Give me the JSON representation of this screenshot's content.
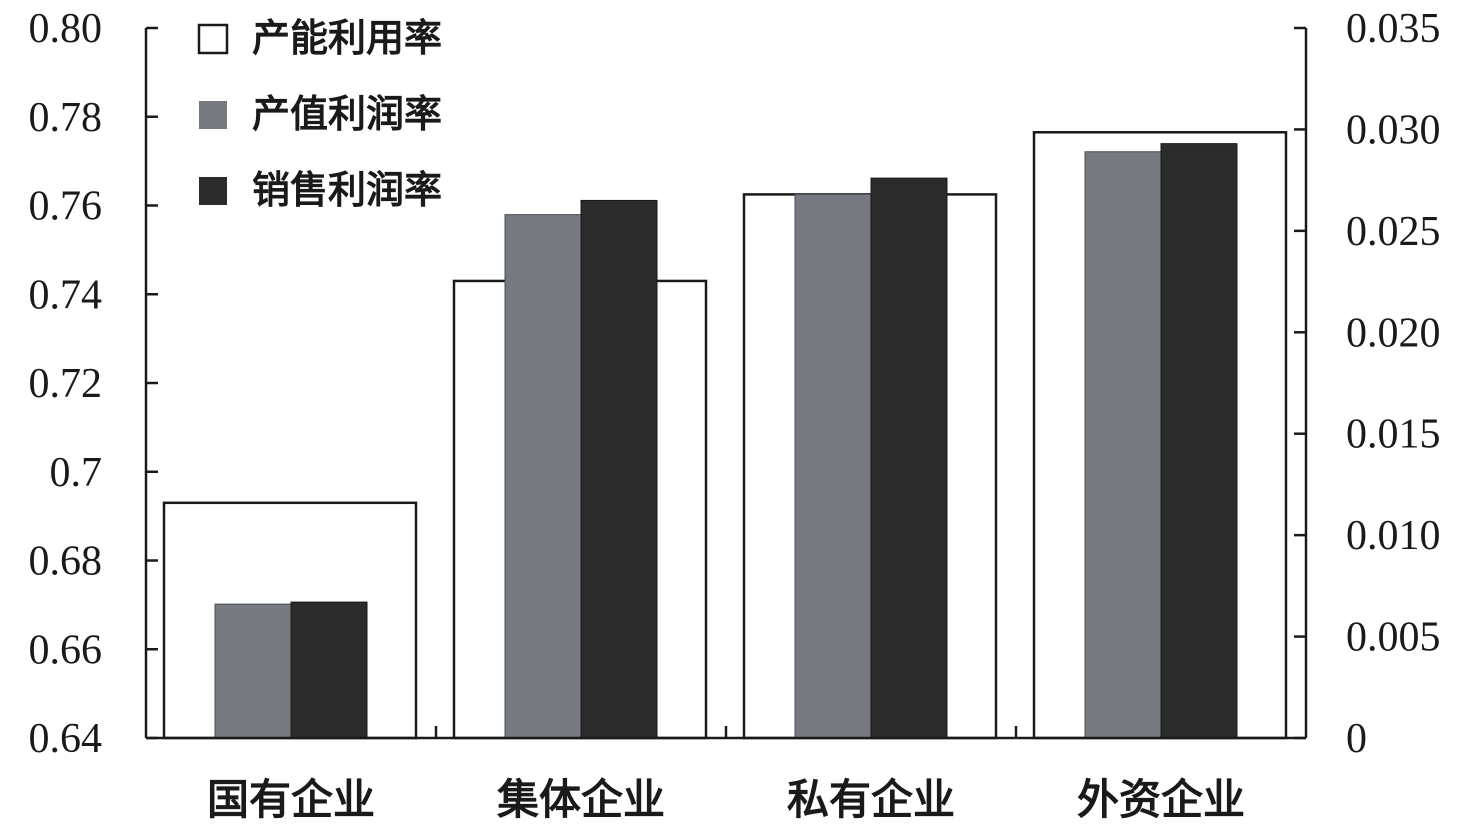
{
  "chart_data": {
    "type": "bar",
    "categories": [
      "国有企业",
      "集体企业",
      "私有企业",
      "外资企业"
    ],
    "series": [
      {
        "name": "产能利用率",
        "axis": "left",
        "color": "#ffffff",
        "values": [
          0.693,
          0.743,
          0.7625,
          0.7765
        ]
      },
      {
        "name": "产值利润率",
        "axis": "right",
        "color": "#767a80",
        "values": [
          0.0066,
          0.0258,
          0.0268,
          0.0289
        ]
      },
      {
        "name": "销售利润率",
        "axis": "right",
        "color": "#2b2b2b",
        "values": [
          0.0067,
          0.0265,
          0.0276,
          0.0293
        ]
      }
    ],
    "y_left": {
      "range": [
        0.64,
        0.8
      ],
      "ticks": [
        "0.64",
        "0.66",
        "0.68",
        "0.7",
        "0.72",
        "0.74",
        "0.76",
        "0.78",
        "0.80"
      ]
    },
    "y_right": {
      "range": [
        0,
        0.035
      ],
      "ticks": [
        "0",
        "0.005",
        "0.010",
        "0.015",
        "0.020",
        "0.025",
        "0.030",
        "0.035"
      ]
    },
    "legend_position": "top-left",
    "grid": false
  }
}
